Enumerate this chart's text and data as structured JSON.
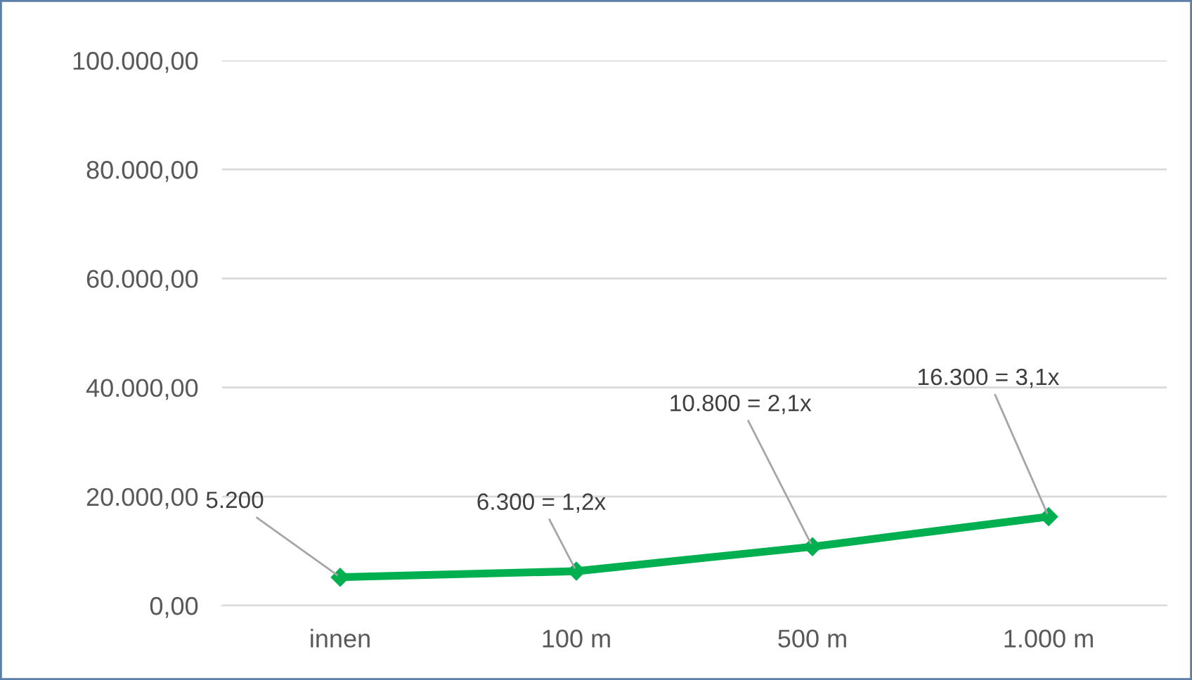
{
  "chart_data": {
    "type": "line",
    "categories": [
      "innen",
      "100 m",
      "500 m",
      "1.000 m"
    ],
    "series": [
      {
        "color": "#00b050",
        "values": [
          5200,
          6300,
          10800,
          16300
        ],
        "value_labels": [
          "5.200",
          "6.300 = 1,2x",
          "10.800 = 2,1x",
          "16.300 = 3,1x"
        ]
      }
    ],
    "ylim": [
      0,
      100000
    ],
    "yticks": [
      {
        "value": 0,
        "label": "0,00"
      },
      {
        "value": 20000,
        "label": "20.000,00"
      },
      {
        "value": 40000,
        "label": "40.000,00"
      },
      {
        "value": 60000,
        "label": "60.000,00"
      },
      {
        "value": 80000,
        "label": "80.000,00"
      },
      {
        "value": 100000,
        "label": "100.000,00"
      }
    ],
    "grid": "y",
    "marker": "diamond",
    "line_style": "solid",
    "legend": false
  }
}
